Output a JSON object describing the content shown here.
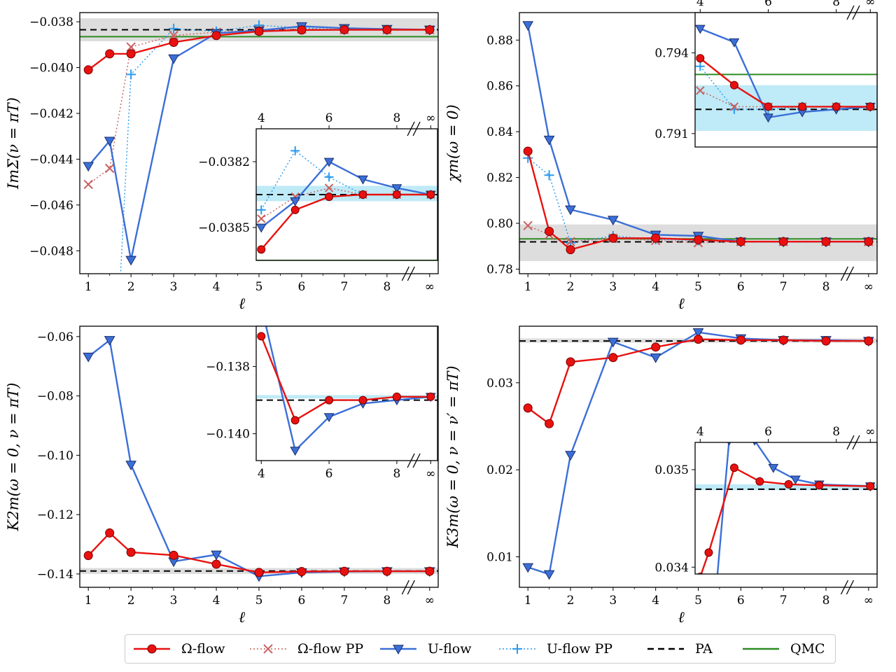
{
  "chart_data": [
    {
      "id": "selfenergy",
      "type": "line",
      "ylabel": "ImΣ(ν = πT)",
      "xlabel": "ℓ",
      "xticks": [
        "1",
        "2",
        "3",
        "4",
        "5",
        "6",
        "7",
        "8",
        "∞"
      ],
      "ylim": [
        -0.049,
        -0.0376
      ],
      "yticks": [
        "−0.038",
        "−0.040",
        "−0.042",
        "−0.044",
        "−0.046",
        "−0.048"
      ],
      "yticks_values": [
        -0.038,
        -0.04,
        -0.042,
        -0.044,
        -0.046,
        -0.048
      ],
      "pa": -0.03835,
      "qmc": -0.03865,
      "band": [
        -0.03885,
        -0.03785
      ],
      "series": [
        {
          "name": "Ω-flow",
          "x": [
            1,
            1.5,
            2,
            3,
            4,
            5,
            6,
            7,
            8,
            9
          ],
          "y": [
            -0.0401,
            -0.0394,
            -0.0394,
            -0.0389,
            -0.0386,
            -0.03842,
            -0.03836,
            -0.03835,
            -0.03835,
            -0.03835
          ]
        },
        {
          "name": "Ω-flow PP",
          "x": [
            1,
            1.5,
            2,
            3,
            4,
            5,
            6,
            7,
            8,
            9
          ],
          "y": [
            -0.0451,
            -0.0444,
            -0.0391,
            -0.0386,
            -0.03846,
            -0.03836,
            -0.03832,
            -0.03835,
            -0.03835,
            -0.03835
          ]
        },
        {
          "name": "U-flow",
          "x": [
            1,
            1.5,
            2,
            3,
            4,
            5,
            6,
            7,
            8,
            9
          ],
          "y": [
            -0.0443,
            -0.0432,
            -0.0484,
            -0.0396,
            -0.0385,
            -0.03838,
            -0.0382,
            -0.03828,
            -0.03832,
            -0.03835
          ]
        },
        {
          "name": "U-flow PP",
          "x": [
            1.75,
            2,
            3,
            4,
            5,
            6,
            7,
            8,
            9
          ],
          "y": [
            -0.0492,
            -0.0403,
            -0.0383,
            -0.03842,
            -0.03815,
            -0.03827,
            -0.03835,
            -0.03835,
            -0.03835
          ]
        }
      ],
      "inset": {
        "xticks": [
          "4",
          "6",
          "8",
          "∞"
        ],
        "ylim": [
          -0.03865,
          -0.03805
        ],
        "yticks": [
          "−0.0382",
          "−0.0385"
        ],
        "yticks_values": [
          -0.0382,
          -0.0385
        ],
        "band": [
          -0.03838,
          -0.03831
        ]
      }
    },
    {
      "id": "chi",
      "type": "line",
      "ylabel": "χm(ω = 0)",
      "xlabel": "ℓ",
      "xticks": [
        "1",
        "2",
        "3",
        "4",
        "5",
        "6",
        "7",
        "8",
        "∞"
      ],
      "ylim": [
        0.778,
        0.892
      ],
      "yticks": [
        "0.88",
        "0.86",
        "0.84",
        "0.82",
        "0.80",
        "0.78"
      ],
      "yticks_values": [
        0.88,
        0.86,
        0.84,
        0.82,
        0.8,
        0.78
      ],
      "pa": 0.7919,
      "qmc": 0.7932,
      "band": [
        0.7835,
        0.7995
      ],
      "series": [
        {
          "name": "Ω-flow",
          "x": [
            1,
            1.5,
            2,
            3,
            4,
            5,
            6,
            7,
            8,
            9
          ],
          "y": [
            0.8315,
            0.7965,
            0.7885,
            0.7935,
            0.7935,
            0.7928,
            0.792,
            0.792,
            0.792,
            0.792
          ]
        },
        {
          "name": "Ω-flow PP",
          "x": [
            1,
            1.5,
            2,
            3,
            4,
            5,
            6,
            7,
            8,
            9
          ],
          "y": [
            0.799,
            0.795,
            0.792,
            0.7935,
            0.7925,
            0.7915,
            0.792,
            0.792,
            0.792,
            0.792
          ]
        },
        {
          "name": "U-flow",
          "x": [
            1,
            1.5,
            2,
            3,
            4,
            5,
            6,
            7,
            8,
            9
          ],
          "y": [
            0.8865,
            0.8365,
            0.806,
            0.8015,
            0.795,
            0.7945,
            0.792,
            0.792,
            0.792,
            0.792
          ]
        },
        {
          "name": "U-flow PP",
          "x": [
            1,
            1.5,
            2,
            3,
            4,
            5,
            6,
            7,
            8,
            9
          ],
          "y": [
            0.8285,
            0.821,
            0.7915,
            0.7945,
            0.793,
            0.7925,
            0.792,
            0.792,
            0.792,
            0.792
          ]
        }
      ],
      "inset": {
        "xticks": [
          "4",
          "6",
          "8",
          "∞"
        ],
        "ylim": [
          0.7905,
          0.7955
        ],
        "yticks": [
          "0.794",
          "0.791"
        ],
        "yticks_values": [
          0.794,
          0.791
        ],
        "band": [
          0.7911,
          0.7928
        ],
        "series_override": {
          "Ω-flow": [
            [
              4,
              0.7938
            ],
            [
              5,
              0.7928
            ],
            [
              6,
              0.792
            ],
            [
              7,
              0.792
            ],
            [
              8,
              0.792
            ],
            [
              9,
              0.792
            ]
          ],
          "Ω-flow PP": [
            [
              4,
              0.7926
            ],
            [
              5,
              0.792
            ],
            [
              6,
              0.792
            ],
            [
              7,
              0.792
            ],
            [
              8,
              0.792
            ],
            [
              9,
              0.792
            ]
          ],
          "U-flow": [
            [
              4,
              0.7949
            ],
            [
              5,
              0.7944
            ],
            [
              6,
              0.7916
            ],
            [
              7,
              0.7918
            ],
            [
              8,
              0.7919
            ],
            [
              9,
              0.792
            ]
          ],
          "U-flow PP": [
            [
              4,
              0.7935
            ],
            [
              5,
              0.7919
            ],
            [
              6,
              0.7919
            ],
            [
              7,
              0.792
            ],
            [
              8,
              0.792
            ],
            [
              9,
              0.792
            ]
          ]
        }
      }
    },
    {
      "id": "k2",
      "type": "line",
      "ylabel": "K2m(ω = 0, ν = πT)",
      "xlabel": "ℓ",
      "xticks": [
        "1",
        "2",
        "3",
        "4",
        "5",
        "6",
        "7",
        "8",
        "∞"
      ],
      "ylim": [
        -0.1445,
        -0.0565
      ],
      "yticks": [
        "−0.06",
        "−0.08",
        "−0.10",
        "−0.12",
        "−0.14"
      ],
      "yticks_values": [
        -0.06,
        -0.08,
        -0.1,
        -0.12,
        -0.14
      ],
      "pa": -0.139,
      "band": [
        -0.14,
        -0.138
      ],
      "series": [
        {
          "name": "Ω-flow",
          "x": [
            1,
            1.5,
            2,
            3,
            4,
            5,
            6,
            7,
            8,
            9
          ],
          "y": [
            -0.1338,
            -0.1262,
            -0.1327,
            -0.1337,
            -0.1367,
            -0.1395,
            -0.1392,
            -0.1391,
            -0.1391,
            -0.1391
          ]
        },
        {
          "name": "U-flow",
          "x": [
            1,
            1.5,
            2,
            3,
            4,
            5,
            6,
            7,
            8,
            9
          ],
          "y": [
            -0.0668,
            -0.0612,
            -0.1032,
            -0.1358,
            -0.1335,
            -0.1408,
            -0.1395,
            -0.1392,
            -0.1391,
            -0.1391
          ]
        }
      ],
      "inset": {
        "xticks": [
          "4",
          "6",
          "8",
          "∞"
        ],
        "ylim": [
          -0.1408,
          -0.1368
        ],
        "yticks": [
          "−0.138",
          "−0.140"
        ],
        "yticks_values": [
          -0.138,
          -0.14
        ],
        "band": [
          -0.13895,
          -0.13885
        ],
        "series_override": {
          "Ω-flow": [
            [
              4,
              -0.1371
            ],
            [
              5,
              -0.1396
            ],
            [
              6,
              -0.139
            ],
            [
              7,
              -0.139
            ],
            [
              8,
              -0.1389
            ],
            [
              9,
              -0.1389
            ]
          ],
          "U-flow": [
            [
              4,
              -0.1362
            ],
            [
              5,
              -0.1405
            ],
            [
              6,
              -0.1395
            ],
            [
              7,
              -0.1391
            ],
            [
              8,
              -0.139
            ],
            [
              9,
              -0.1389
            ]
          ]
        }
      }
    },
    {
      "id": "k3",
      "type": "line",
      "ylabel": "K3m(ω = 0, ν = ν′ = πT)",
      "xlabel": "ℓ",
      "xticks": [
        "1",
        "2",
        "3",
        "4",
        "5",
        "6",
        "7",
        "8",
        "∞"
      ],
      "ylim": [
        0.0065,
        0.0365
      ],
      "yticks": [
        "0.03",
        "0.02",
        "0.01"
      ],
      "yticks_values": [
        0.03,
        0.02,
        0.01
      ],
      "pa": 0.0348,
      "band": [
        0.0346,
        0.0351
      ],
      "series": [
        {
          "name": "Ω-flow",
          "x": [
            1,
            1.5,
            2,
            3,
            4,
            5,
            6,
            7,
            8,
            9
          ],
          "y": [
            0.0271,
            0.0253,
            0.0324,
            0.0329,
            0.0341,
            0.035,
            0.0349,
            0.0349,
            0.0348,
            0.0348
          ]
        },
        {
          "name": "U-flow",
          "x": [
            1,
            1.5,
            2,
            3,
            4,
            5,
            6,
            7,
            8,
            9
          ],
          "y": [
            0.0088,
            0.008,
            0.0217,
            0.0347,
            0.0329,
            0.0358,
            0.0351,
            0.0349,
            0.0349,
            0.0348
          ]
        }
      ],
      "inset": {
        "xticks": [
          "4",
          "6",
          "8",
          "∞"
        ],
        "ylim": [
          0.03393,
          0.03528
        ],
        "yticks": [
          "0.035",
          "0.034"
        ],
        "yticks_values": [
          0.035,
          0.034
        ],
        "band": [
          0.03479,
          0.03485
        ],
        "series_override": {
          "Ω-flow": [
            [
              4,
              0.0339
            ],
            [
              4.25,
              0.03415
            ],
            [
              5,
              0.03502
            ],
            [
              5.75,
              0.03488
            ],
            [
              6.6,
              0.03485
            ],
            [
              7.5,
              0.03484
            ],
            [
              9,
              0.03483
            ]
          ],
          "U-flow": [
            [
              4.5,
              0.0339
            ],
            [
              4.85,
              0.0353
            ],
            [
              5.6,
              0.0353
            ],
            [
              6.15,
              0.03502
            ],
            [
              6.8,
              0.0349
            ],
            [
              7.5,
              0.03485
            ],
            [
              9,
              0.03483
            ]
          ]
        }
      }
    }
  ],
  "legend": [
    {
      "name": "Ω-flow",
      "label": "Ω-flow",
      "color": "#e8110f",
      "marker": "circle",
      "dash": ""
    },
    {
      "name": "Ω-flow PP",
      "label": "Ω-flow PP",
      "color": "#c9605f",
      "marker": "x",
      "dash": "2,3"
    },
    {
      "name": "U-flow",
      "label": "U-flow",
      "color": "#3b6fd8",
      "marker": "triangle",
      "dash": ""
    },
    {
      "name": "U-flow PP",
      "label": "U-flow PP",
      "color": "#2a9bef",
      "marker": "plus",
      "dash": "2,3"
    },
    {
      "name": "PA",
      "label": "PA",
      "color": "#000000",
      "marker": "none",
      "dash": "9,6"
    },
    {
      "name": "QMC",
      "label": "QMC",
      "color": "#2e8b22",
      "marker": "none",
      "dash": ""
    }
  ],
  "colors": {
    "band": "#dddddd",
    "inset_band": "#bfeaf7"
  }
}
